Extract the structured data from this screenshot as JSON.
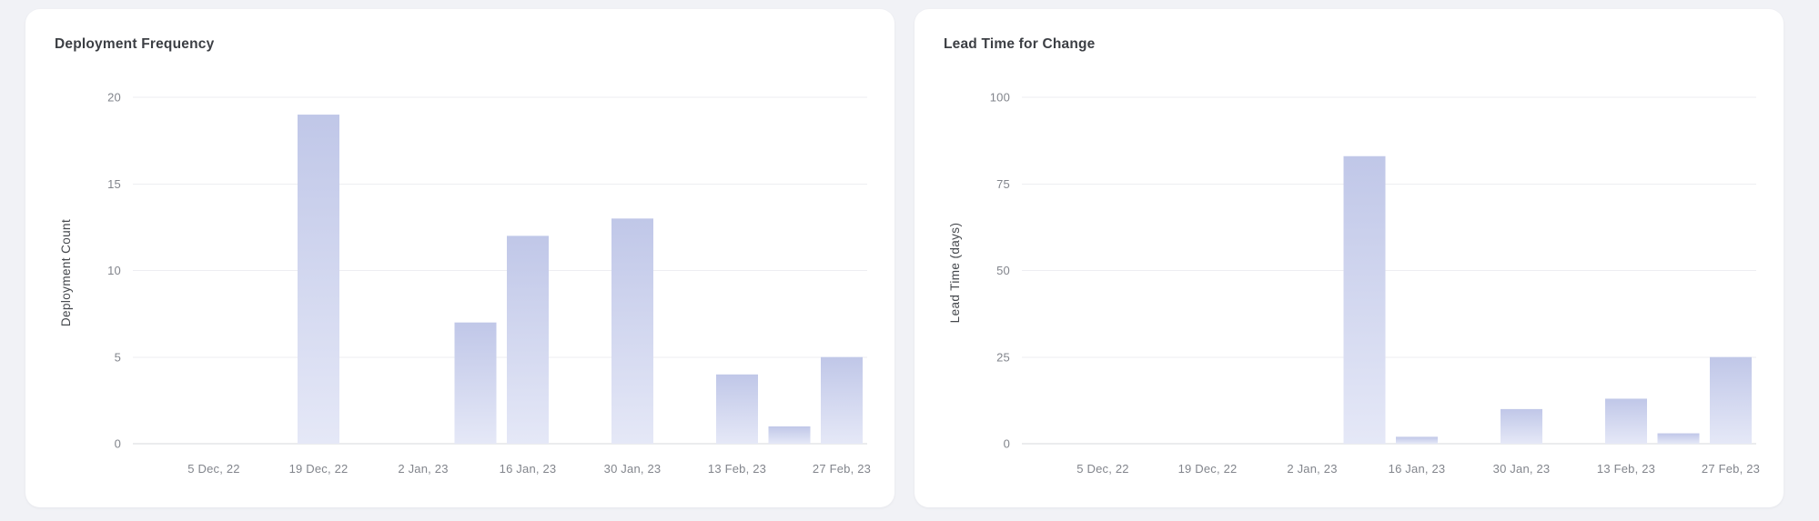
{
  "colors": {
    "page_bg": "#f1f2f6",
    "card_bg": "#ffffff",
    "title_text": "#3c3f44",
    "tick_text": "#82858c",
    "axis_label_text": "#45484d",
    "grid_line": "#edeef2",
    "zero_line": "#d7d8dd",
    "bar_gradient_top": "#c0c7e8",
    "bar_gradient_bottom": "#e5e8f7"
  },
  "chart_data": [
    {
      "type": "bar",
      "title": "Deployment Frequency",
      "xlabel": "",
      "ylabel": "Deployment Count",
      "ylim": [
        0,
        20
      ],
      "y_ticks": [
        0,
        5,
        10,
        15,
        20
      ],
      "grid": true,
      "legend": false,
      "num_slots": 13,
      "x_tick_slots": [
        0,
        2,
        4,
        6,
        8,
        10,
        12
      ],
      "x_tick_labels": [
        "5 Dec, 22",
        "19 Dec, 22",
        "2 Jan, 23",
        "16 Jan, 23",
        "30 Jan, 23",
        "13 Feb, 23",
        "27 Feb, 23"
      ],
      "bars": [
        {
          "slot": 2,
          "value": 19
        },
        {
          "slot": 5,
          "value": 7
        },
        {
          "slot": 6,
          "value": 12
        },
        {
          "slot": 8,
          "value": 13
        },
        {
          "slot": 10,
          "value": 4
        },
        {
          "slot": 11,
          "value": 1
        },
        {
          "slot": 12,
          "value": 5
        }
      ]
    },
    {
      "type": "bar",
      "title": "Lead Time for Change",
      "xlabel": "",
      "ylabel": "Lead Time (days)",
      "ylim": [
        0,
        100
      ],
      "y_ticks": [
        0,
        25,
        50,
        75,
        100
      ],
      "grid": true,
      "legend": false,
      "num_slots": 13,
      "x_tick_slots": [
        0,
        2,
        4,
        6,
        8,
        10,
        12
      ],
      "x_tick_labels": [
        "5 Dec, 22",
        "19 Dec, 22",
        "2 Jan, 23",
        "16 Jan, 23",
        "30 Jan, 23",
        "13 Feb, 23",
        "27 Feb, 23"
      ],
      "bars": [
        {
          "slot": 5,
          "value": 83
        },
        {
          "slot": 6,
          "value": 2
        },
        {
          "slot": 8,
          "value": 10
        },
        {
          "slot": 10,
          "value": 13
        },
        {
          "slot": 11,
          "value": 3
        },
        {
          "slot": 12,
          "value": 25
        }
      ]
    }
  ]
}
